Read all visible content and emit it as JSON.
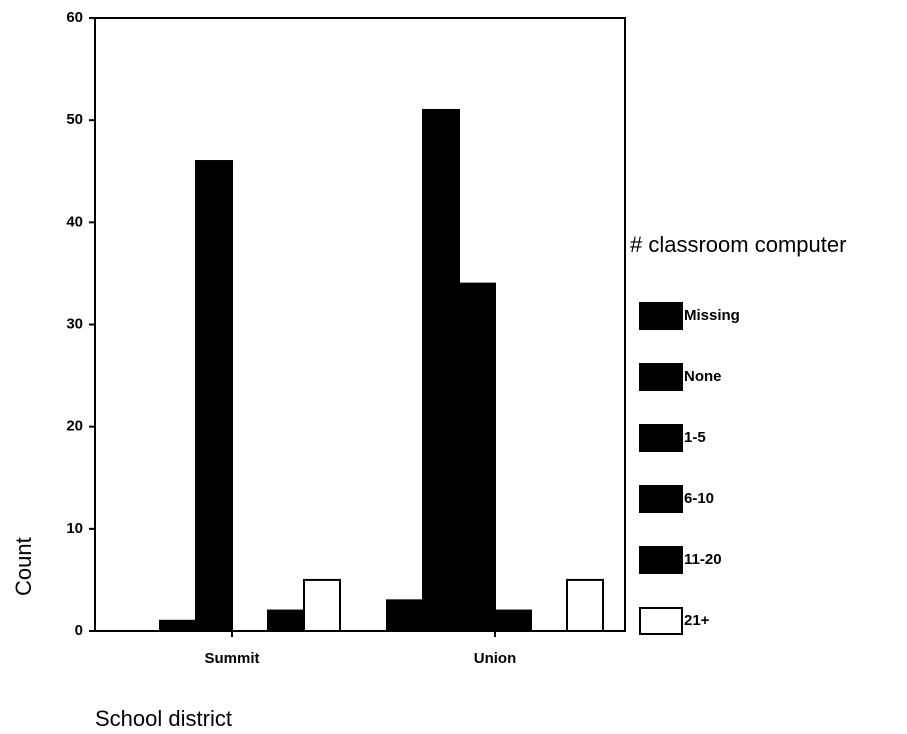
{
  "chart_data": {
    "type": "bar",
    "x_label": "School district",
    "y_label": "Count",
    "legend_title": "# classroom computer",
    "categories": [
      "Summit",
      "Union"
    ],
    "series": [
      {
        "name": "Missing",
        "color": "#000000",
        "values": [
          0,
          3
        ]
      },
      {
        "name": "None",
        "color": "#000000",
        "values": [
          1,
          51
        ]
      },
      {
        "name": "1-5",
        "color": "#000000",
        "values": [
          46,
          34
        ]
      },
      {
        "name": "6-10",
        "color": "#000000",
        "values": [
          0,
          2
        ]
      },
      {
        "name": "11-20",
        "color": "#000000",
        "values": [
          2,
          0
        ]
      },
      {
        "name": "21+",
        "color": "#ffffff",
        "values": [
          5,
          5
        ]
      }
    ],
    "ylim": [
      0,
      60
    ],
    "yticks": [
      0,
      10,
      20,
      30,
      40,
      50,
      60
    ],
    "legend": "right"
  }
}
